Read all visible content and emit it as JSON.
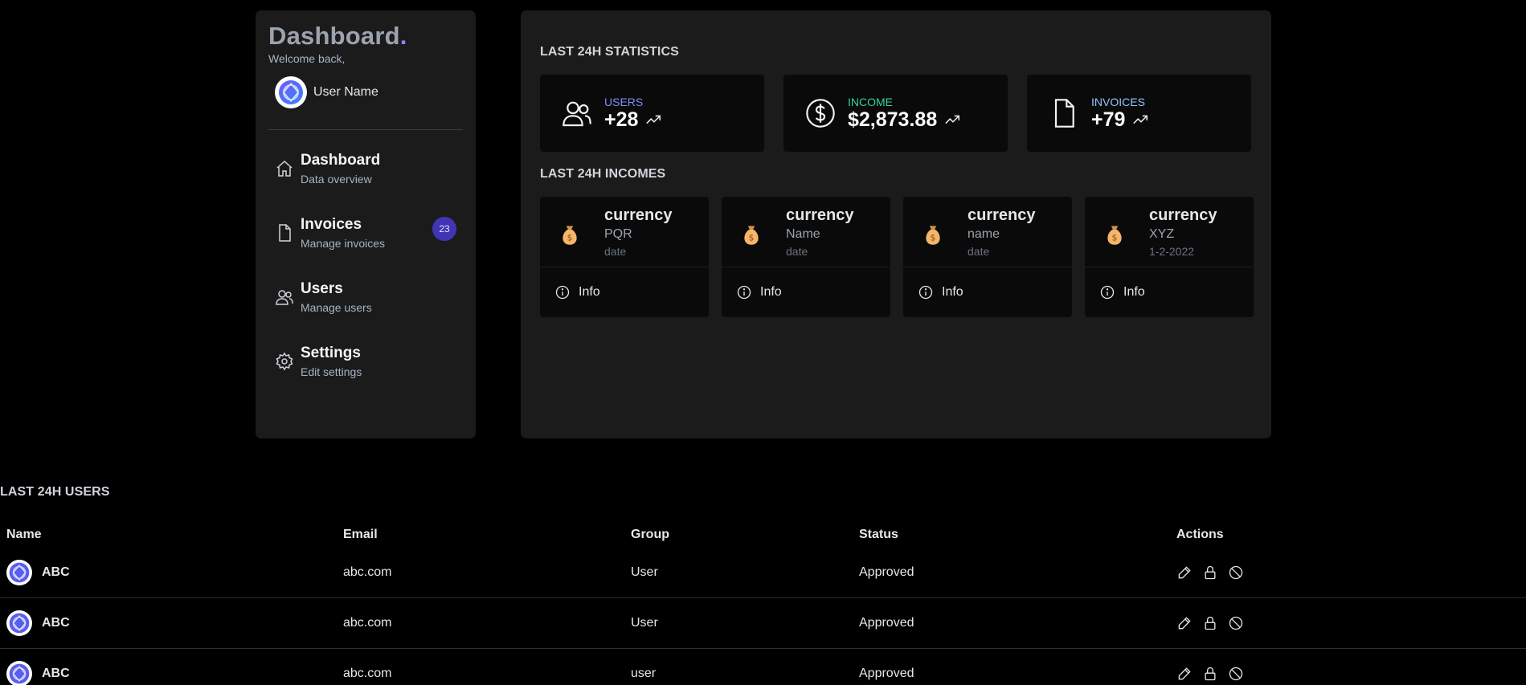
{
  "sidebar": {
    "brand": "Dashboard",
    "brand_dot": ".",
    "welcome": "Welcome back,",
    "user_name": "User Name",
    "items": [
      {
        "title": "Dashboard",
        "subtitle": "Data overview",
        "icon": "home-icon"
      },
      {
        "title": "Invoices",
        "subtitle": "Manage invoices",
        "icon": "file-icon",
        "badge": "23"
      },
      {
        "title": "Users",
        "subtitle": "Manage users",
        "icon": "users-icon"
      },
      {
        "title": "Settings",
        "subtitle": "Edit settings",
        "icon": "gear-icon"
      }
    ]
  },
  "stats": {
    "title": "LAST 24H STATISTICS",
    "cards": [
      {
        "label": "USERS",
        "value": "+28",
        "label_color": "#818cf8",
        "icon": "users-icon"
      },
      {
        "label": "INCOME",
        "value": "$2,873.88",
        "label_color": "#34d399",
        "icon": "dollar-icon"
      },
      {
        "label": "INVOICES",
        "value": "+79",
        "label_color": "#93c5fd",
        "icon": "file-icon"
      }
    ]
  },
  "incomes": {
    "title": "LAST 24H INCOMES",
    "cards": [
      {
        "title": "currency",
        "name": "PQR",
        "date": "date",
        "info": "Info"
      },
      {
        "title": "currency",
        "name": "Name",
        "date": "date",
        "info": "Info"
      },
      {
        "title": "currency",
        "name": "name",
        "date": "date",
        "info": "Info"
      },
      {
        "title": "currency",
        "name": "XYZ",
        "date": "1-2-2022",
        "info": "Info"
      }
    ]
  },
  "users": {
    "title": "LAST 24H USERS",
    "headers": [
      "Name",
      "Email",
      "Group",
      "Status",
      "Actions"
    ],
    "rows": [
      {
        "name": "ABC",
        "email": "abc.com",
        "group": "User",
        "status": "Approved"
      },
      {
        "name": "ABC",
        "email": "abc.com",
        "group": "User",
        "status": "Approved"
      },
      {
        "name": "ABC",
        "email": "abc.com",
        "group": "user",
        "status": "Approved"
      }
    ]
  }
}
